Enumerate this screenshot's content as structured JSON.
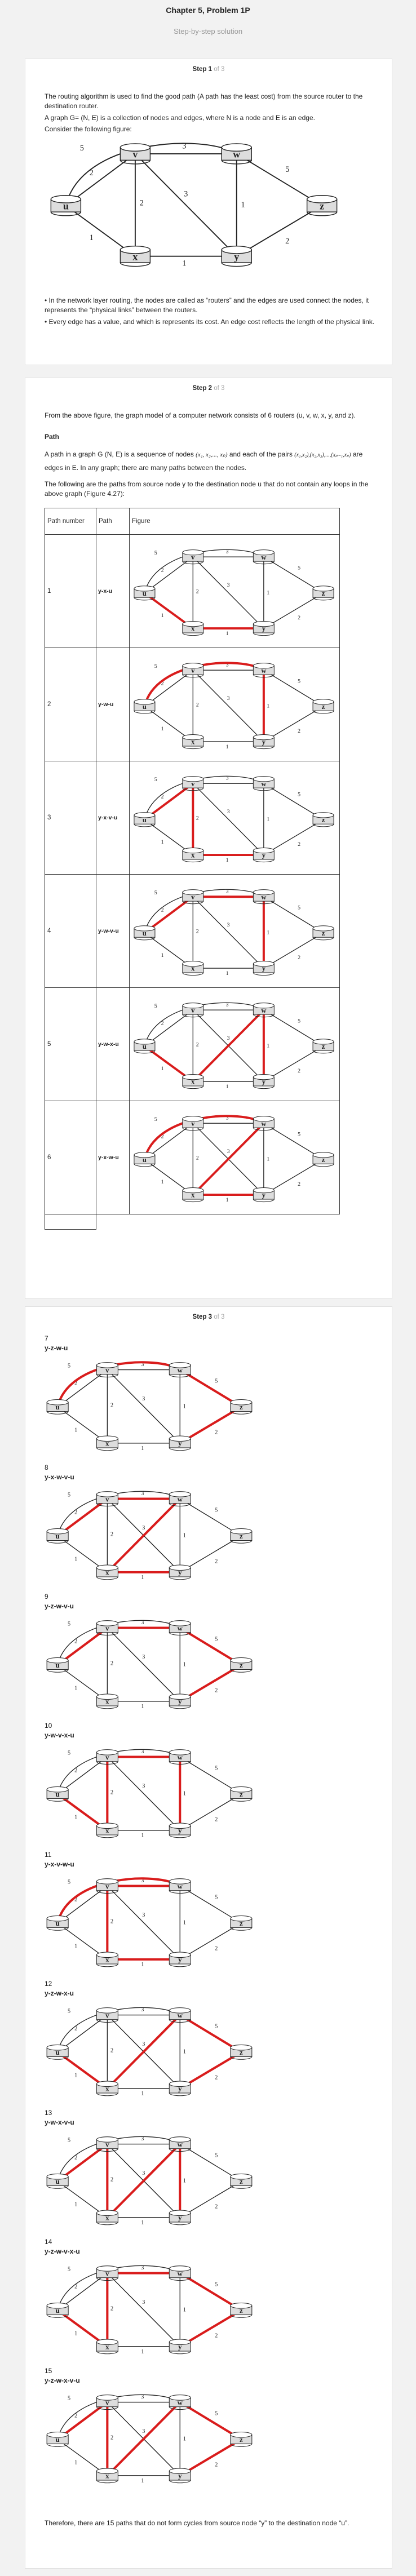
{
  "header": {
    "title": "Chapter 5, Problem 1P",
    "subtitle": "Step-by-step solution"
  },
  "step1": {
    "label": "Step 1",
    "of": "of 3",
    "p1": "The routing algorithm is used to find the good path (A path has the least cost) from the source router to the destination router.",
    "p2": "A graph G= (N, E) is a collection of nodes and edges, where N is a node and E is an edge.",
    "p3": "Consider the following figure:",
    "b1": "• In the network layer routing, the nodes are called as “routers” and the edges are used connect the nodes, it represents the “physical links” between the routers.",
    "b2": "• Every edge has a value, and which is represents its cost. An edge cost reflects the length of the physical link."
  },
  "graph": {
    "node_labels": [
      "u",
      "v",
      "w",
      "x",
      "y",
      "z"
    ],
    "edge_costs": [
      "2",
      "5",
      "3",
      "1",
      "2",
      "3",
      "1",
      "1",
      "5",
      "2"
    ]
  },
  "step2": {
    "label": "Step 2",
    "of": "of 3",
    "p1": "From the above figure, the graph model of a computer network consists of 6 routers (u, v, w, x, y, and z).",
    "path_heading": "Path",
    "p2a": "A path in a graph G (N, E) is a sequence of nodes",
    "p2_nodes": "(x₁, x₂,..., xₚ)",
    "p2b": "and each of the pairs",
    "p2_pairs": "(x₁,x₂),(x₂,x₃),...,(xₚ₋₁,xₚ)",
    "p2c": "are edges in E. In any graph; there are many paths between the nodes.",
    "p3": "The following are the paths from source node y to the destination node u that do not contain any loops in the above graph (Figure 4.27):",
    "table_headers": [
      "Path number",
      "Path",
      "Figure"
    ],
    "rows": [
      {
        "num": "1",
        "path": "y-x-u"
      },
      {
        "num": "2",
        "path": "y-w-u"
      },
      {
        "num": "3",
        "path": "y-x-v-u"
      },
      {
        "num": "4",
        "path": "y-w-v-u"
      },
      {
        "num": "5",
        "path": "y-w-x-u"
      },
      {
        "num": "6",
        "path": "y-x-w-u"
      }
    ]
  },
  "step3": {
    "label": "Step 3",
    "of": "of 3",
    "items": [
      {
        "num": "7",
        "path": "y-z-w-u"
      },
      {
        "num": "8",
        "path": "y-x-w-v-u"
      },
      {
        "num": "9",
        "path": "y-z-w-v-u"
      },
      {
        "num": "10",
        "path": "y-w-v-x-u"
      },
      {
        "num": "11",
        "path": "y-x-v-w-u"
      },
      {
        "num": "12",
        "path": "y-z-w-x-u"
      },
      {
        "num": "13",
        "path": "y-w-x-v-u"
      },
      {
        "num": "14",
        "path": "y-z-w-v-x-u"
      },
      {
        "num": "15",
        "path": "y-z-w-x-v-u"
      }
    ],
    "conclusion": "Therefore, there are 15 paths that do not form cycles from source node “y” to the destination node “u”."
  }
}
